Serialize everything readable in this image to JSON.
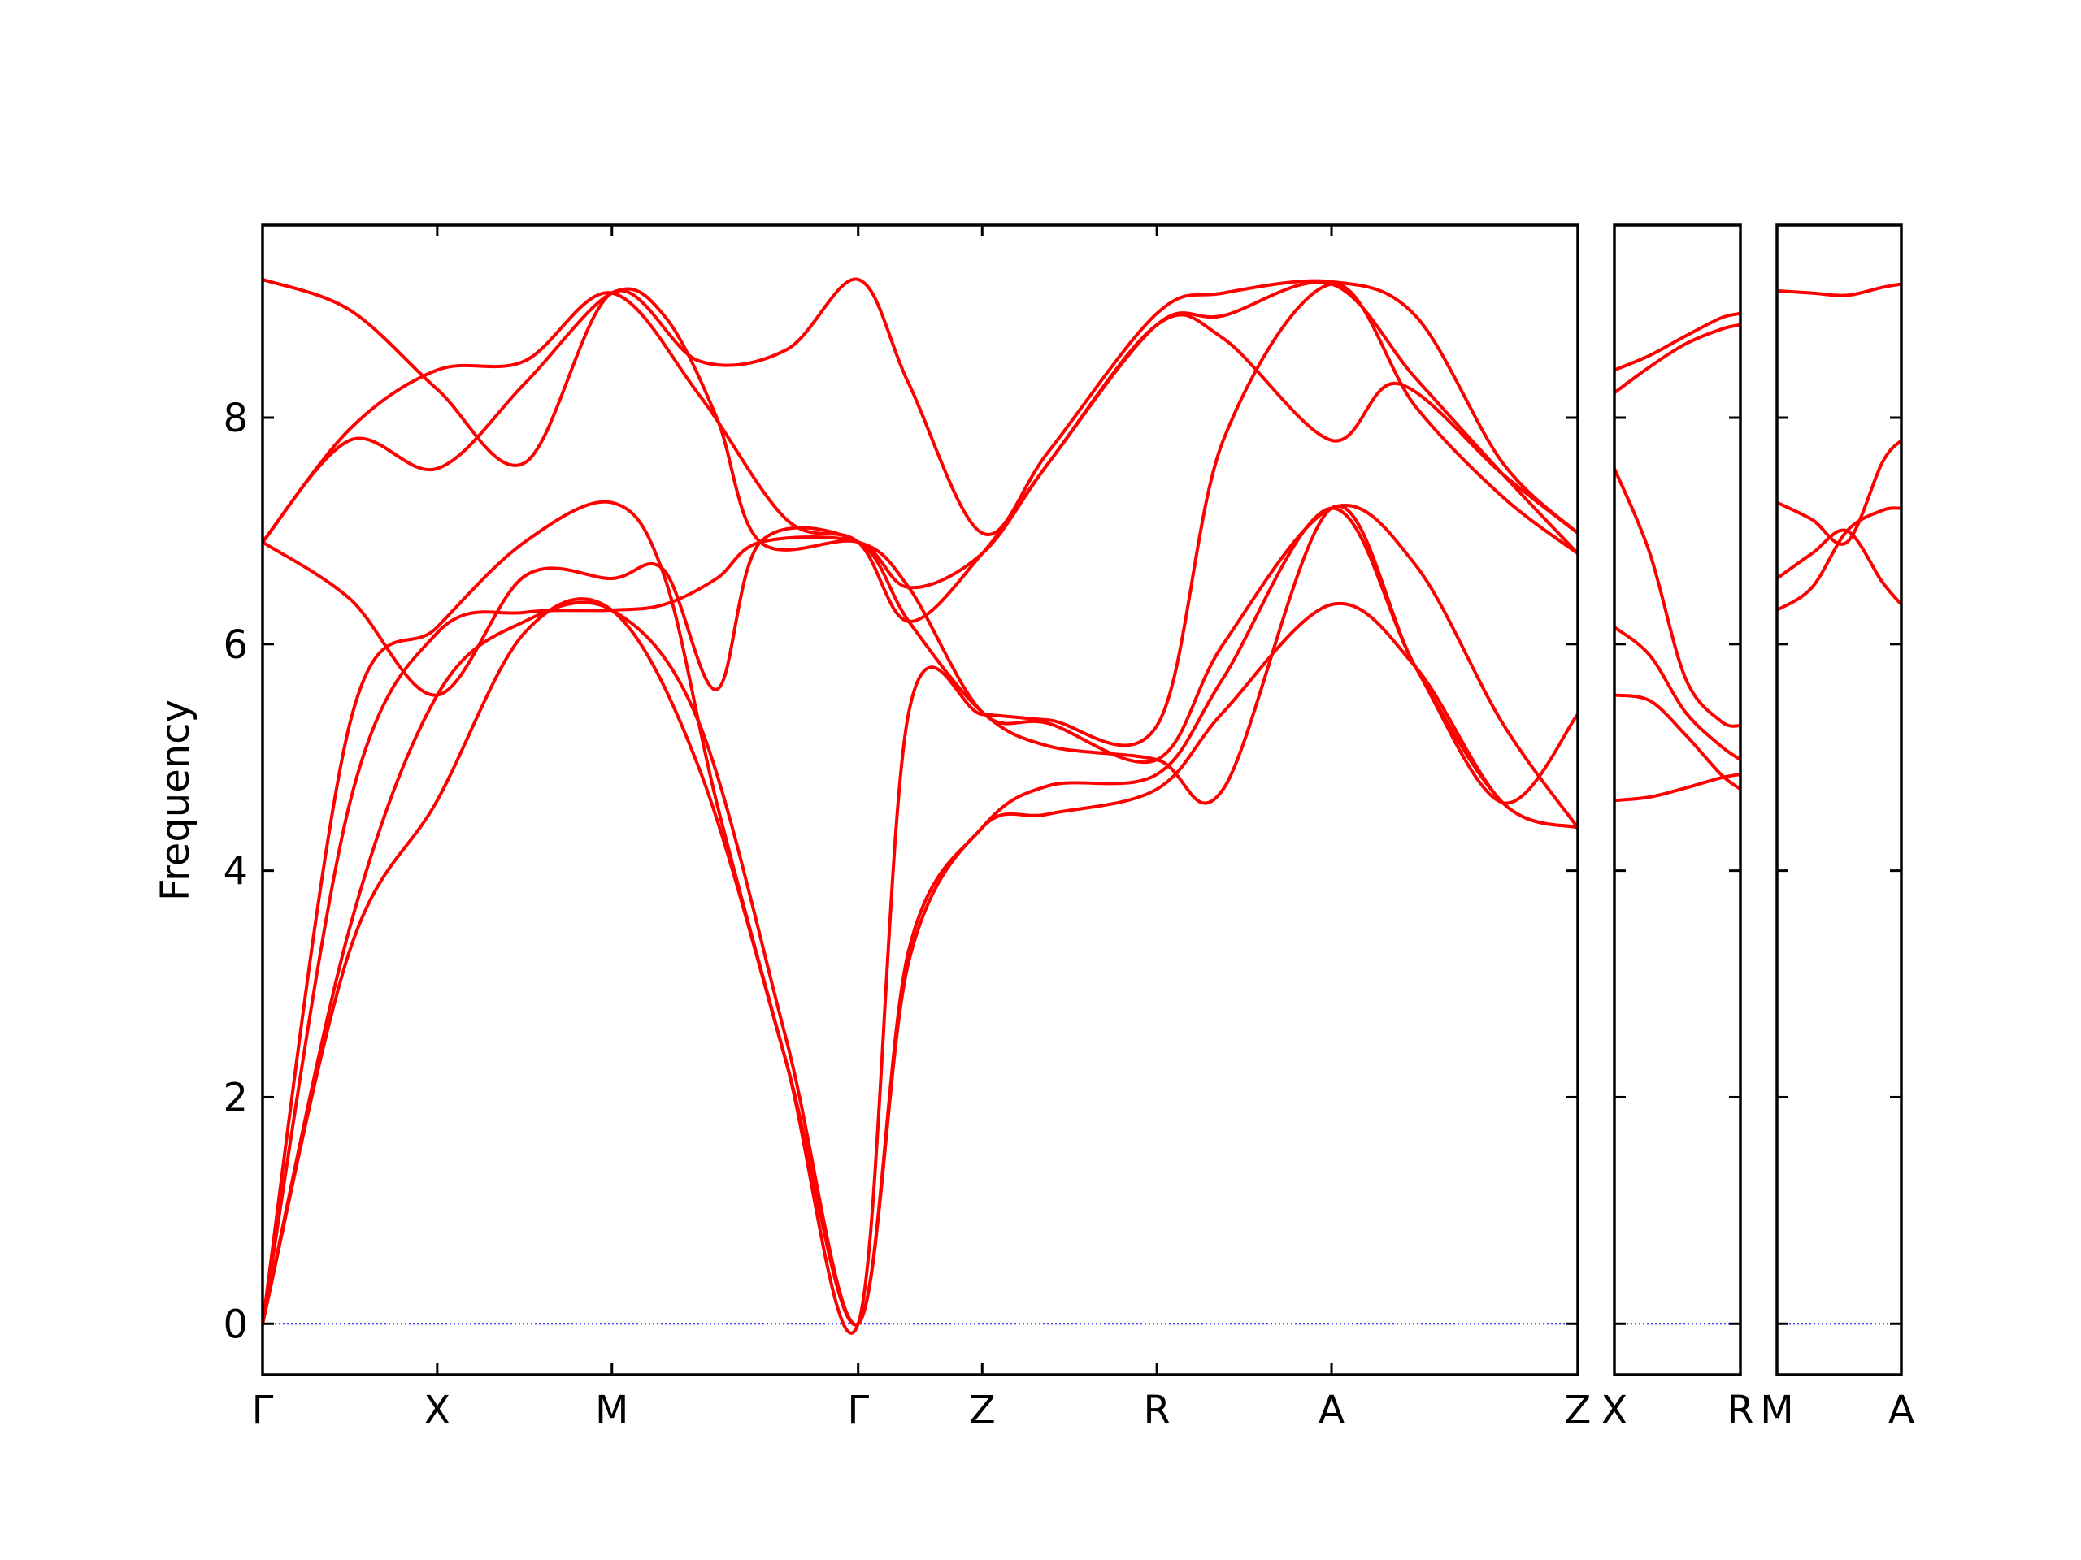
{
  "chart_data": {
    "type": "line",
    "ylabel": "Frequency",
    "ylim": [
      -0.45,
      9.7
    ],
    "y_ticks": [
      "0",
      "2",
      "4",
      "6",
      "8"
    ],
    "grid": false,
    "legend": "none",
    "band_color": "#ff0000",
    "zero_line_color": "#0000ff",
    "panels": [
      {
        "path": "Γ-X-M-Γ-Z-R-A-Z",
        "tick_labels": [
          "Γ",
          "X",
          "M",
          "Γ",
          "Z",
          "R",
          "A",
          "Z"
        ],
        "tick_positions": [
          0,
          1,
          2,
          3.41,
          4.12,
          5.12,
          6.12,
          7.53
        ],
        "x_range": [
          0,
          7.53
        ],
        "bands": [
          {
            "x": [
              0,
              0.5,
              1,
              1.5,
              2,
              2.5,
              3,
              3.41,
              3.7,
              4.12,
              4.5,
              5.12,
              5.5,
              6.12,
              6.6,
              7.1,
              7.53
            ],
            "y": [
              0,
              3.3,
              4.62,
              6.1,
              6.3,
              4.9,
              2.3,
              0,
              3.2,
              4.38,
              4.5,
              4.72,
              5.4,
              6.35,
              5.8,
              4.6,
              4.38
            ]
          },
          {
            "x": [
              0,
              0.5,
              1,
              1.5,
              2,
              2.5,
              3,
              3.41,
              3.7,
              4.12,
              4.5,
              5.12,
              5.5,
              6.12,
              6.6,
              7.1,
              7.53
            ],
            "y": [
              0,
              3.5,
              5.55,
              6.2,
              6.3,
              5.3,
              2.5,
              0,
              3.3,
              4.38,
              4.75,
              4.85,
              5.7,
              7.2,
              5.8,
              4.6,
              4.38
            ]
          },
          {
            "x": [
              0,
              0.5,
              1,
              1.5,
              2,
              2.3,
              2.6,
              2.85,
              3.41,
              3.7,
              4.12,
              4.5,
              5.12,
              5.5,
              6.12,
              6.6,
              7.1,
              7.53
            ],
            "y": [
              0,
              4.6,
              6.1,
              6.28,
              6.3,
              6.35,
              6.58,
              6.9,
              6.9,
              6.5,
              5.4,
              5.3,
              4.98,
              6.0,
              7.2,
              6.7,
              5.3,
              4.38
            ]
          },
          {
            "x": [
              0,
              0.5,
              1,
              1.5,
              2,
              2.3,
              2.6,
              3.0,
              3.41,
              3.7,
              4.12,
              4.5,
              5.12,
              5.5,
              6.12,
              6.6,
              7.1,
              7.53
            ],
            "y": [
              0,
              5.3,
              6.15,
              6.9,
              7.25,
              6.6,
              4.6,
              2.3,
              0,
              5.4,
              5.38,
              5.33,
              5.28,
              7.8,
              9.18,
              8.1,
              7.3,
              6.8
            ]
          },
          {
            "x": [
              0,
              0.5,
              1,
              1.5,
              2,
              2.3,
              2.6,
              2.85,
              3.41,
              3.7,
              4.12,
              4.5,
              5.12,
              5.5,
              6.12,
              6.6,
              7.1,
              7.53
            ],
            "y": [
              6.9,
              6.4,
              5.55,
              6.6,
              6.58,
              6.65,
              5.6,
              6.9,
              6.9,
              6.2,
              5.4,
              5.1,
              4.98,
              4.72,
              7.2,
              5.8,
              4.6,
              5.38
            ]
          },
          {
            "x": [
              0,
              0.5,
              1,
              1.5,
              2,
              2.3,
              2.6,
              2.85,
              3.41,
              3.7,
              4.12,
              4.5,
              5.12,
              5.5,
              6.12,
              6.6,
              7.1,
              7.53
            ],
            "y": [
              6.9,
              7.8,
              7.55,
              8.3,
              9.1,
              8.9,
              8.0,
              6.9,
              6.9,
              6.5,
              6.8,
              7.6,
              8.82,
              8.9,
              9.18,
              8.35,
              7.5,
              6.8
            ]
          },
          {
            "x": [
              0,
              0.5,
              1,
              1.5,
              2,
              2.5,
              3,
              3.41,
              3.7,
              4.12,
              4.5,
              5.12,
              5.5,
              6.12,
              6.5,
              7.1,
              7.53
            ],
            "y": [
              6.9,
              7.9,
              8.42,
              8.5,
              9.1,
              8.2,
              7.1,
              6.9,
              6.2,
              6.8,
              7.6,
              8.82,
              8.7,
              7.8,
              8.3,
              7.5,
              6.98
            ]
          },
          {
            "x": [
              0,
              0.5,
              1,
              1.5,
              2,
              2.5,
              3,
              3.41,
              3.7,
              4.12,
              4.5,
              5.12,
              5.5,
              6.12,
              6.6,
              7.1,
              7.53
            ],
            "y": [
              9.22,
              8.95,
              8.25,
              7.6,
              9.1,
              8.5,
              8.6,
              9.22,
              8.3,
              6.98,
              7.7,
              8.92,
              9.1,
              9.2,
              8.9,
              7.6,
              6.98
            ]
          }
        ]
      },
      {
        "path": "X-R",
        "tick_labels": [
          "X",
          "R"
        ],
        "tick_positions": [
          0,
          0.71
        ],
        "x_range": [
          0,
          0.71
        ],
        "bands": [
          {
            "x": [
              0,
              0.2,
              0.4,
              0.6,
              0.71
            ],
            "y": [
              4.62,
              4.65,
              4.73,
              4.82,
              4.85
            ]
          },
          {
            "x": [
              0,
              0.2,
              0.4,
              0.6,
              0.71
            ],
            "y": [
              5.55,
              5.5,
              5.2,
              4.85,
              4.72
            ]
          },
          {
            "x": [
              0,
              0.2,
              0.4,
              0.6,
              0.71
            ],
            "y": [
              6.15,
              5.9,
              5.4,
              5.1,
              4.98
            ]
          },
          {
            "x": [
              0,
              0.2,
              0.4,
              0.6,
              0.71
            ],
            "y": [
              7.55,
              6.8,
              5.7,
              5.32,
              5.28
            ]
          },
          {
            "x": [
              0,
              0.2,
              0.4,
              0.6,
              0.71
            ],
            "y": [
              8.22,
              8.45,
              8.65,
              8.78,
              8.82
            ]
          },
          {
            "x": [
              0,
              0.2,
              0.4,
              0.6,
              0.71
            ],
            "y": [
              8.42,
              8.55,
              8.72,
              8.88,
              8.92
            ]
          }
        ]
      },
      {
        "path": "M-A",
        "tick_labels": [
          "M",
          "A"
        ],
        "tick_positions": [
          0,
          0.71
        ],
        "x_range": [
          0,
          0.71
        ],
        "bands": [
          {
            "x": [
              0,
              0.2,
              0.4,
              0.6,
              0.71
            ],
            "y": [
              6.3,
              6.5,
              7.0,
              7.18,
              7.2
            ]
          },
          {
            "x": [
              0,
              0.2,
              0.4,
              0.6,
              0.71
            ],
            "y": [
              6.58,
              6.8,
              7.0,
              6.55,
              6.35
            ]
          },
          {
            "x": [
              0,
              0.2,
              0.4,
              0.6,
              0.71
            ],
            "y": [
              7.25,
              7.1,
              6.9,
              7.6,
              7.8
            ]
          },
          {
            "x": [
              0,
              0.2,
              0.4,
              0.6,
              0.71
            ],
            "y": [
              9.12,
              9.1,
              9.08,
              9.15,
              9.18
            ]
          }
        ]
      }
    ]
  }
}
